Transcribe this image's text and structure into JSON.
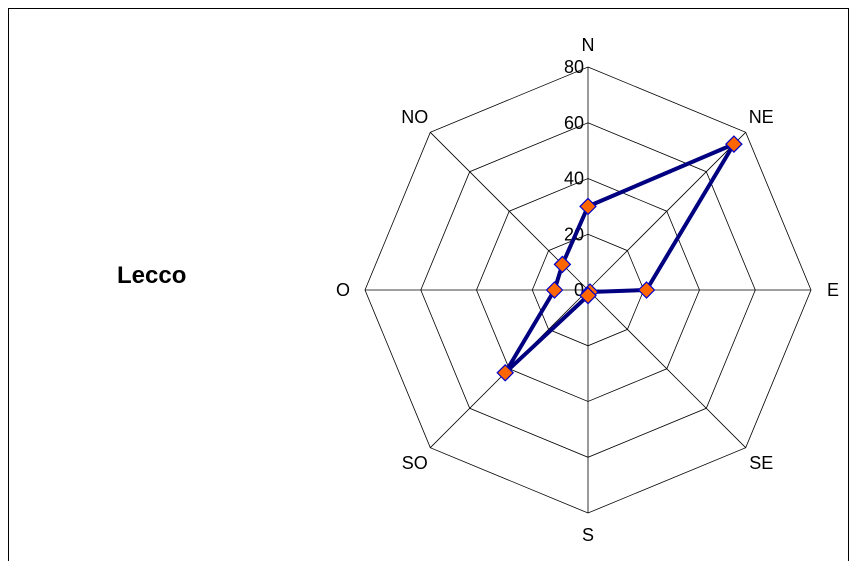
{
  "chart_data": {
    "type": "radar",
    "title": "Lecco",
    "categories": [
      "N",
      "NE",
      "E",
      "SE",
      "S",
      "SO",
      "O",
      "NO"
    ],
    "radial_ticks": [
      0,
      20,
      40,
      60,
      80
    ],
    "rmax": 80,
    "series": [
      {
        "values": [
          30,
          74,
          21,
          1,
          2,
          42,
          12,
          13
        ]
      }
    ],
    "colors": {
      "line": "#000080",
      "marker_fill": "#FF6600",
      "marker_edge": "#0000CC",
      "grid": "#000000"
    },
    "grid": true,
    "legend": "none"
  }
}
